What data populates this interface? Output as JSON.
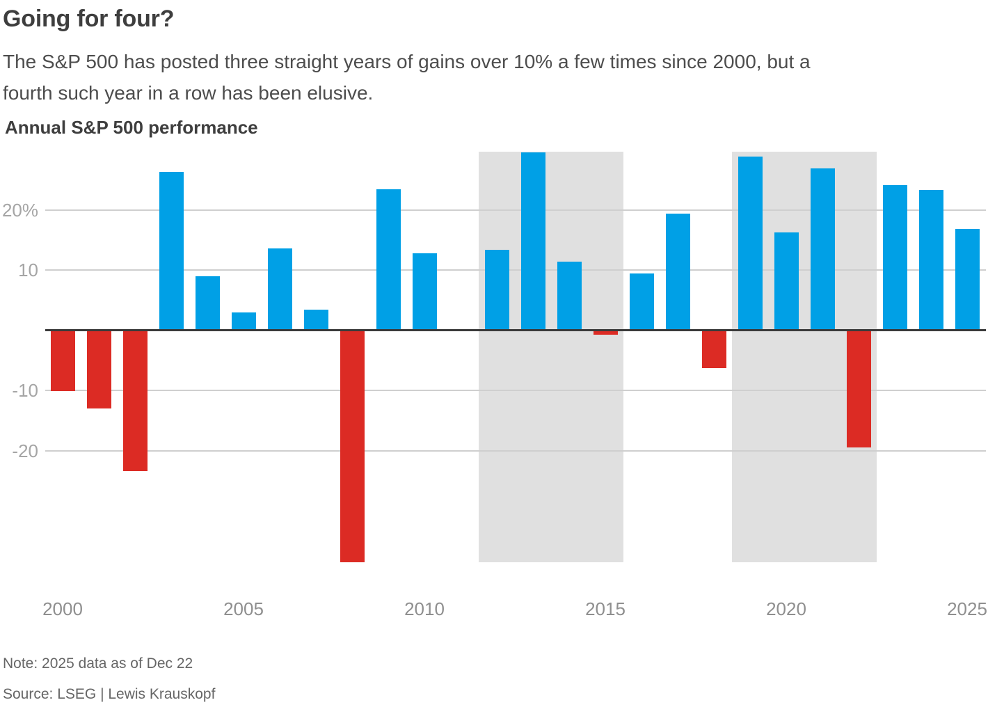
{
  "header": {
    "title": "Going for four?",
    "subtitle_lines": [
      "The S&P 500 has posted three straight years of gains over 10% a few times since 2000, but a",
      "fourth such year in a row has been elusive."
    ]
  },
  "chart": {
    "heading": "Annual S&P 500 performance"
  },
  "footer": {
    "note": "Note: 2025 data as of Dec 22",
    "source": "Source: LSEG | Lewis Krauskopf"
  },
  "chart_data": {
    "type": "bar",
    "title": "Annual S&P 500 performance",
    "unit": "percent",
    "x": [
      2000,
      2001,
      2002,
      2003,
      2004,
      2005,
      2006,
      2007,
      2008,
      2009,
      2010,
      2011,
      2012,
      2013,
      2014,
      2015,
      2016,
      2017,
      2018,
      2019,
      2020,
      2021,
      2022,
      2023,
      2024,
      2025
    ],
    "values": [
      -10.1,
      -13.0,
      -23.4,
      26.4,
      9.0,
      3.0,
      13.6,
      3.5,
      -38.5,
      23.5,
      12.8,
      0.0,
      13.4,
      29.6,
      11.4,
      -0.7,
      9.5,
      19.4,
      -6.2,
      28.9,
      16.3,
      26.9,
      -19.4,
      24.2,
      23.3,
      16.9
    ],
    "y_ticks": [
      {
        "value": 20,
        "label": "20%"
      },
      {
        "value": 10,
        "label": "10"
      },
      {
        "value": -10,
        "label": "-10"
      },
      {
        "value": -20,
        "label": "-20"
      }
    ],
    "x_tick_labels": [
      {
        "year": 2000,
        "label": "2000"
      },
      {
        "year": 2005,
        "label": "2005"
      },
      {
        "year": 2010,
        "label": "2010"
      },
      {
        "year": 2015,
        "label": "2015"
      },
      {
        "year": 2020,
        "label": "2020"
      },
      {
        "year": 2025,
        "label": "2025"
      }
    ],
    "highlight_bands": [
      {
        "from_year": 2012,
        "to_year": 2015
      },
      {
        "from_year": 2019,
        "to_year": 2022
      }
    ],
    "ylim": [
      -38.5,
      29.7
    ],
    "grid": true,
    "legend": "none",
    "colors": {
      "positive": "#00a0e6",
      "negative": "#dc2b24",
      "band": "#e0e0e0",
      "gridline": "#cfcfcf",
      "baseline": "#3a3a3a"
    }
  }
}
